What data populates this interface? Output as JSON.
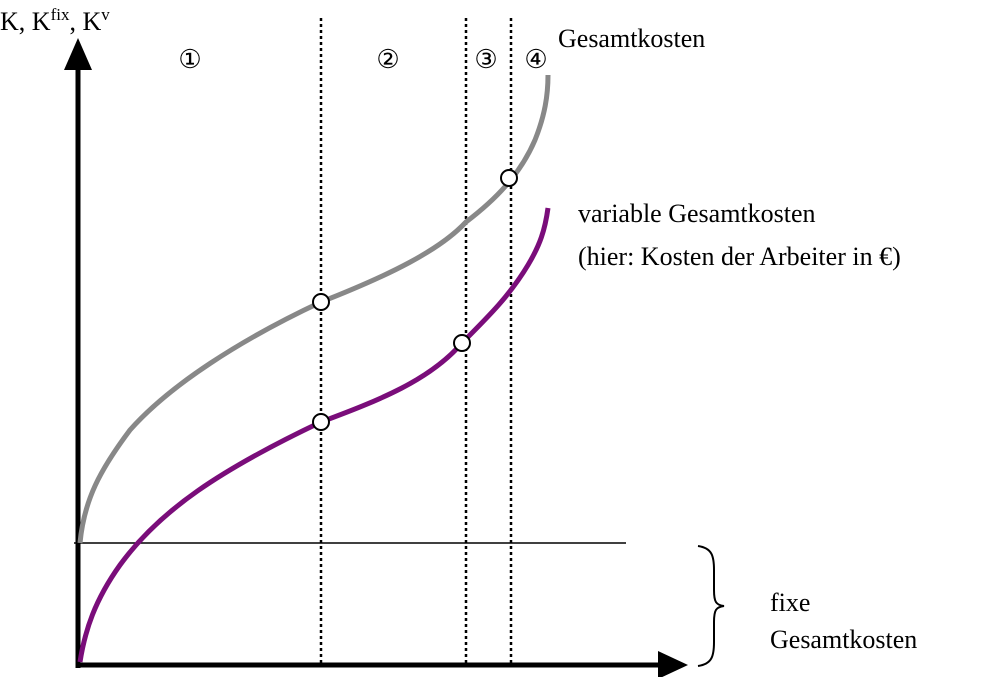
{
  "axis_label": {
    "parts": [
      "K, K",
      "fix",
      ", K",
      "v"
    ]
  },
  "phases": [
    "①",
    "②",
    "③",
    "④"
  ],
  "labels": {
    "total": "Gesamtkosten",
    "variable": [
      "variable Gesamtkosten",
      "(hier: Kosten der Arbeiter in €)"
    ],
    "fixed": [
      "fixe",
      "Gesamtkosten"
    ]
  }
}
